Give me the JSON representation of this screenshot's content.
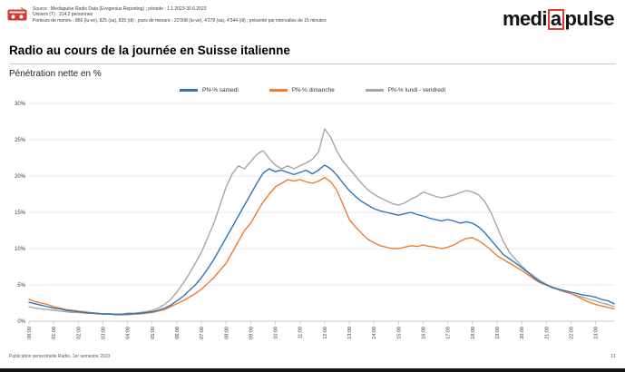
{
  "header": {
    "source_lines": [
      "Source : Mediapulse Radio Data (Evogenius Reporting) ; période : 1.1.2023-30.6.2023",
      "Univers (T) : 314.2 personnes",
      "Porteurs de montre : 866 (lu-ve), 825 (sa), 835 (di) ; jours de mesure : 22'008 (lu-ve), 4'278 (sa), 4'344 (di) ; présenté par intervalles de 15 minutes"
    ],
    "icon_color": "#cf3b2f",
    "logo": {
      "pre": "medi",
      "boxed": "a",
      "post": "pulse",
      "accent_color": "#e0392e"
    }
  },
  "title": "Radio au cours de la journée en Suisse italienne",
  "subtitle": "Pénétration nette en %",
  "footer": {
    "left": "Publication semestrielle Radio, 1er semestre 2023",
    "page": "11"
  },
  "chart_data": {
    "type": "line",
    "title": "Radio au cours de la journée en Suisse italienne",
    "ylabel": "Pénétration nette en %",
    "ylim": [
      0,
      30
    ],
    "y_ticks": [
      0,
      5,
      10,
      15,
      20,
      25,
      30
    ],
    "y_tick_suffix": "%",
    "grid": "horizontal",
    "legend_position": "top",
    "x_start": "00:00",
    "x_interval_minutes": 15,
    "points_per_series": 96,
    "x_tick_every_points": 4,
    "x_tick_labels": [
      "00:00",
      "01:00",
      "02:00",
      "03:00",
      "04:00",
      "05:00",
      "06:00",
      "07:00",
      "08:00",
      "09:00",
      "10:00",
      "11:00",
      "12:00",
      "13:00",
      "14:00",
      "15:00",
      "16:00",
      "17:00",
      "18:00",
      "19:00",
      "20:00",
      "21:00",
      "22:00",
      "23:00"
    ],
    "series": [
      {
        "name": "PN-% samedi",
        "color": "#2e75b6",
        "values": [
          2.6,
          2.4,
          2.2,
          2.0,
          1.8,
          1.7,
          1.5,
          1.4,
          1.3,
          1.2,
          1.1,
          1.1,
          1.0,
          1.0,
          0.9,
          0.9,
          1.0,
          1.0,
          1.1,
          1.2,
          1.3,
          1.5,
          1.8,
          2.2,
          2.8,
          3.4,
          4.2,
          5.0,
          6.0,
          7.2,
          8.5,
          10.0,
          11.5,
          13.0,
          14.5,
          16.0,
          17.5,
          19.0,
          20.4,
          21.0,
          20.6,
          20.8,
          20.5,
          20.2,
          20.5,
          20.8,
          20.3,
          20.8,
          21.5,
          21.0,
          20.1,
          19.0,
          18.0,
          17.2,
          16.5,
          16.0,
          15.5,
          15.2,
          15.0,
          14.8,
          14.6,
          14.8,
          15.0,
          14.7,
          14.5,
          14.2,
          14.0,
          13.8,
          14.0,
          13.8,
          13.5,
          13.7,
          13.5,
          13.0,
          12.2,
          11.2,
          10.2,
          9.2,
          8.6,
          8.0,
          7.4,
          6.7,
          6.0,
          5.4,
          5.0,
          4.6,
          4.4,
          4.2,
          4.0,
          3.8,
          3.6,
          3.5,
          3.3,
          3.0,
          2.8,
          2.4
        ]
      },
      {
        "name": "PN-% dimanche",
        "color": "#ed7d31",
        "values": [
          3.0,
          2.7,
          2.5,
          2.3,
          2.0,
          1.8,
          1.6,
          1.5,
          1.4,
          1.3,
          1.2,
          1.1,
          1.0,
          1.0,
          0.9,
          0.9,
          0.9,
          1.0,
          1.0,
          1.1,
          1.2,
          1.4,
          1.6,
          2.0,
          2.4,
          2.8,
          3.3,
          3.8,
          4.4,
          5.2,
          6.0,
          7.0,
          8.0,
          9.5,
          11.0,
          12.5,
          13.5,
          15.0,
          16.4,
          17.5,
          18.5,
          19.0,
          19.5,
          19.3,
          19.5,
          19.2,
          19.0,
          19.3,
          19.8,
          19.2,
          18.0,
          16.0,
          14.0,
          13.0,
          12.1,
          11.3,
          10.8,
          10.4,
          10.2,
          10.0,
          10.0,
          10.2,
          10.4,
          10.3,
          10.5,
          10.3,
          10.2,
          10.0,
          10.2,
          10.5,
          11.0,
          11.4,
          11.5,
          11.1,
          10.5,
          9.8,
          9.0,
          8.5,
          8.0,
          7.5,
          7.0,
          6.4,
          5.8,
          5.3,
          5.0,
          4.7,
          4.4,
          4.1,
          3.8,
          3.4,
          3.0,
          2.6,
          2.3,
          2.1,
          1.9,
          1.7
        ]
      },
      {
        "name": "PN-% lundi - vendredi",
        "color": "#a6a6a6",
        "values": [
          2.0,
          1.8,
          1.7,
          1.6,
          1.5,
          1.4,
          1.3,
          1.2,
          1.2,
          1.1,
          1.1,
          1.0,
          1.0,
          1.0,
          1.0,
          1.0,
          1.1,
          1.1,
          1.2,
          1.3,
          1.5,
          1.8,
          2.3,
          3.0,
          4.0,
          5.2,
          6.5,
          8.0,
          9.5,
          11.5,
          13.5,
          16.0,
          18.5,
          20.3,
          21.4,
          21.0,
          22.0,
          23.0,
          23.5,
          22.4,
          21.5,
          21.0,
          21.4,
          21.0,
          21.4,
          21.8,
          22.3,
          23.3,
          26.5,
          25.3,
          23.4,
          22.0,
          21.0,
          20.0,
          19.0,
          18.1,
          17.5,
          17.0,
          16.6,
          16.2,
          16.0,
          16.3,
          16.8,
          17.2,
          17.8,
          17.5,
          17.2,
          17.0,
          17.2,
          17.4,
          17.7,
          18.0,
          17.8,
          17.4,
          16.5,
          15.0,
          13.0,
          11.0,
          9.5,
          8.5,
          7.6,
          6.8,
          6.2,
          5.6,
          5.1,
          4.7,
          4.3,
          4.0,
          3.8,
          3.5,
          3.3,
          3.0,
          2.8,
          2.5,
          2.3,
          2.0
        ]
      }
    ]
  }
}
